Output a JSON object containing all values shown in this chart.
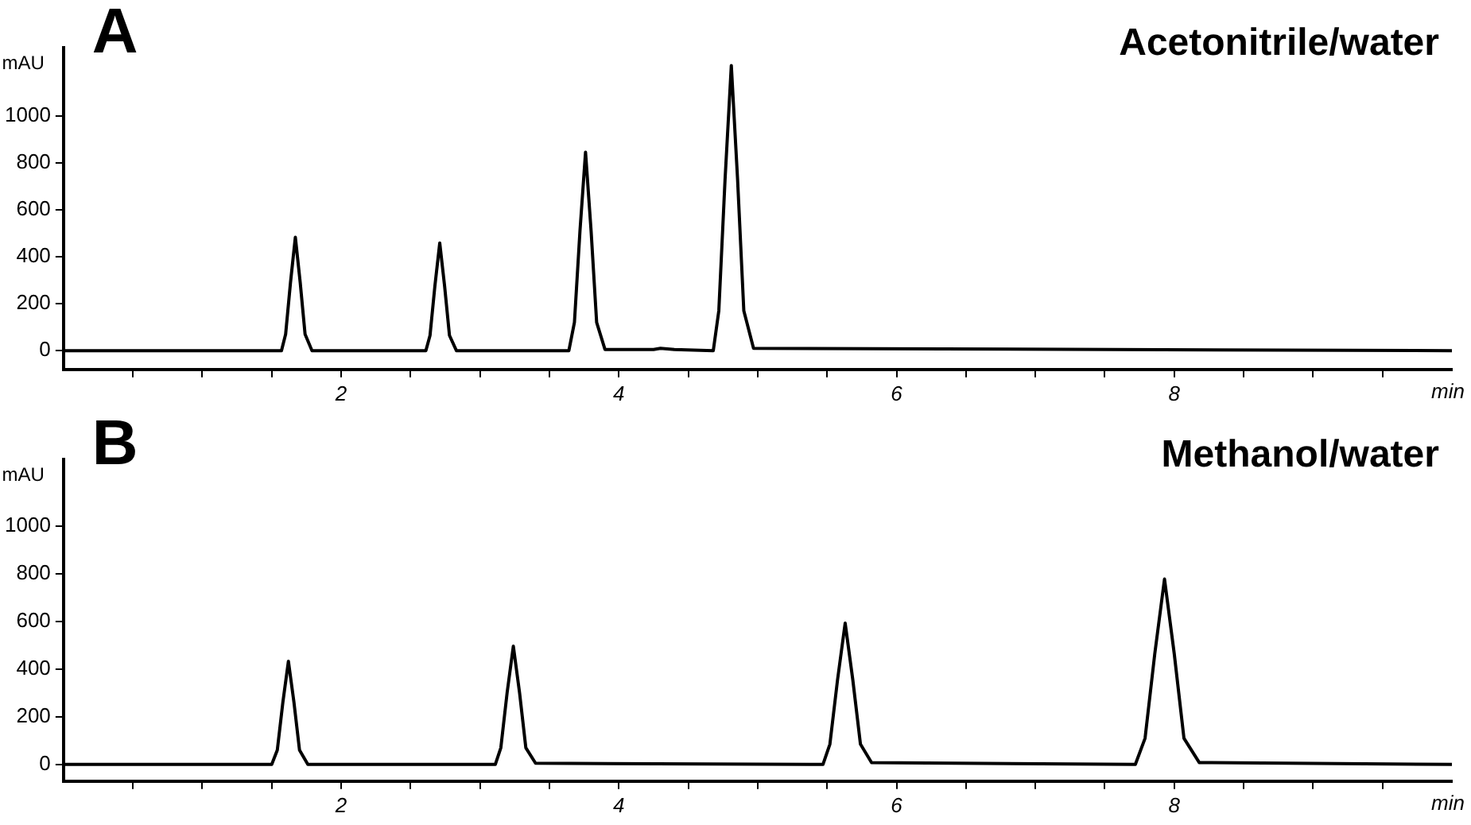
{
  "chart_data": [
    {
      "type": "line",
      "title": "A",
      "annotations": [
        "Acetonitrile/water"
      ],
      "xlabel": "min",
      "ylabel": "mAU",
      "grid": false,
      "legend": false,
      "marker": "none",
      "line_style": "solid",
      "xlim": [
        0,
        10
      ],
      "ylim": [
        -80,
        1290
      ],
      "yticks": [
        0,
        200,
        400,
        600,
        800,
        1000
      ],
      "xticks": [
        {
          "value": 0.5,
          "label": null
        },
        {
          "value": 1,
          "label": null
        },
        {
          "value": 1.5,
          "label": null
        },
        2,
        {
          "value": 2.5,
          "label": null
        },
        {
          "value": 3,
          "label": null
        },
        {
          "value": 3.5,
          "label": null
        },
        4,
        {
          "value": 4.5,
          "label": null
        },
        {
          "value": 5,
          "label": null
        },
        {
          "value": 5.5,
          "label": null
        },
        6,
        {
          "value": 6.5,
          "label": null
        },
        {
          "value": 7,
          "label": null
        },
        {
          "value": 7.5,
          "label": null
        },
        8,
        {
          "value": 8.5,
          "label": null
        },
        {
          "value": 9,
          "label": null
        },
        {
          "value": 9.5,
          "label": null
        }
      ],
      "series": [
        {
          "color": "#000000",
          "x": [
            0,
            1.57,
            1.6,
            1.635,
            1.67,
            1.705,
            1.74,
            1.79,
            2.61,
            2.64,
            2.675,
            2.71,
            2.745,
            2.78,
            2.83,
            3.64,
            3.68,
            3.72,
            3.76,
            3.8,
            3.84,
            3.9,
            4.25,
            4.3,
            4.4,
            4.68,
            4.72,
            4.765,
            4.81,
            4.855,
            4.9,
            4.97,
            10
          ],
          "values": [
            0,
            0,
            70,
            290,
            483,
            290,
            70,
            0,
            0,
            65,
            275,
            458,
            275,
            65,
            0,
            0,
            120,
            510,
            845,
            510,
            120,
            5,
            5,
            10,
            5,
            0,
            170,
            730,
            1214,
            730,
            170,
            10,
            0
          ]
        }
      ]
    },
    {
      "type": "line",
      "title": "B",
      "annotations": [
        "Methanol/water"
      ],
      "xlabel": "min",
      "ylabel": "mAU",
      "grid": false,
      "legend": false,
      "marker": "none",
      "line_style": "solid",
      "xlim": [
        0,
        10
      ],
      "ylim": [
        -70,
        1280
      ],
      "yticks": [
        0,
        200,
        400,
        600,
        800,
        1000
      ],
      "xticks": [
        {
          "value": 0.5,
          "label": null
        },
        {
          "value": 1,
          "label": null
        },
        {
          "value": 1.5,
          "label": null
        },
        2,
        {
          "value": 2.5,
          "label": null
        },
        {
          "value": 3,
          "label": null
        },
        {
          "value": 3.5,
          "label": null
        },
        4,
        {
          "value": 4.5,
          "label": null
        },
        {
          "value": 5,
          "label": null
        },
        {
          "value": 5.5,
          "label": null
        },
        6,
        {
          "value": 6.5,
          "label": null
        },
        {
          "value": 7,
          "label": null
        },
        {
          "value": 7.5,
          "label": null
        },
        8,
        {
          "value": 8.5,
          "label": null
        },
        {
          "value": 9,
          "label": null
        },
        {
          "value": 9.5,
          "label": null
        }
      ],
      "series": [
        {
          "color": "#000000",
          "x": [
            0,
            1.5,
            1.54,
            1.58,
            1.62,
            1.66,
            1.7,
            1.76,
            3.11,
            3.15,
            3.195,
            3.24,
            3.285,
            3.33,
            3.4,
            5.47,
            5.52,
            5.575,
            5.63,
            5.685,
            5.74,
            5.82,
            7.72,
            7.79,
            7.86,
            7.93,
            8.0,
            8.07,
            8.18,
            10
          ],
          "values": [
            0,
            0,
            60,
            260,
            433,
            260,
            60,
            0,
            0,
            70,
            300,
            496,
            300,
            70,
            5,
            0,
            85,
            355,
            593,
            355,
            85,
            8,
            0,
            110,
            465,
            778,
            465,
            110,
            8,
            0
          ]
        }
      ]
    }
  ]
}
